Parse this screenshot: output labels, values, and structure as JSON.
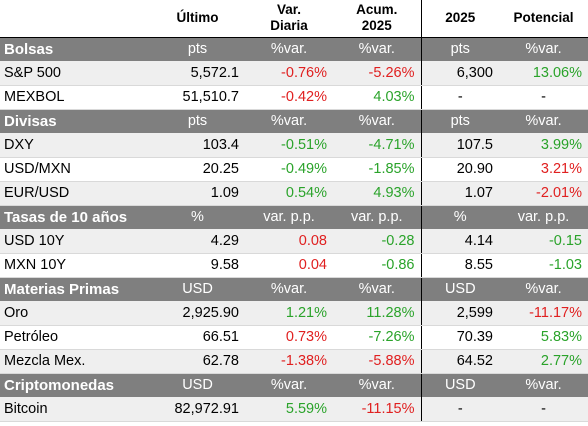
{
  "header": {
    "col_ultimo": "Último",
    "col_var_diaria": "Var.\nDiaria",
    "col_acum": "Acum.\n2025",
    "col_2025": "2025",
    "col_potencial": "Potencial"
  },
  "sections": [
    {
      "title": "Bolsas",
      "units": [
        "pts",
        "%var.",
        "%var.",
        "pts",
        "%var."
      ],
      "rows": [
        {
          "name": "S&P 500",
          "ultimo": "5,572.1",
          "diaria": "-0.76%",
          "acum": "-5.26%",
          "target": "6,300",
          "potencial": "13.06%",
          "colors": [
            "neg",
            "neg",
            "pos"
          ]
        },
        {
          "name": "MEXBOL",
          "ultimo": "51,510.7",
          "diaria": "-0.42%",
          "acum": "4.03%",
          "target": "-",
          "potencial": "-",
          "colors": [
            "neg",
            "pos",
            "neu"
          ]
        }
      ]
    },
    {
      "title": "Divisas",
      "units": [
        "pts",
        "%var.",
        "%var.",
        "pts",
        "%var."
      ],
      "rows": [
        {
          "name": "DXY",
          "ultimo": "103.4",
          "diaria": "-0.51%",
          "acum": "-4.71%",
          "target": "107.5",
          "potencial": "3.99%",
          "colors": [
            "pos",
            "pos",
            "pos"
          ]
        },
        {
          "name": "USD/MXN",
          "ultimo": "20.25",
          "diaria": "-0.49%",
          "acum": "-1.85%",
          "target": "20.90",
          "potencial": "3.21%",
          "colors": [
            "pos",
            "pos",
            "neg"
          ]
        },
        {
          "name": "EUR/USD",
          "ultimo": "1.09",
          "diaria": "0.54%",
          "acum": "4.93%",
          "target": "1.07",
          "potencial": "-2.01%",
          "colors": [
            "pos",
            "pos",
            "neg"
          ]
        }
      ]
    },
    {
      "title": "Tasas de 10 años",
      "units": [
        "%",
        "var. p.p.",
        "var. p.p.",
        "%",
        "var. p.p."
      ],
      "rows": [
        {
          "name": "USD 10Y",
          "ultimo": "4.29",
          "diaria": "0.08",
          "acum": "-0.28",
          "target": "4.14",
          "potencial": "-0.15",
          "colors": [
            "neg",
            "pos",
            "pos"
          ]
        },
        {
          "name": "MXN 10Y",
          "ultimo": "9.58",
          "diaria": "0.04",
          "acum": "-0.86",
          "target": "8.55",
          "potencial": "-1.03",
          "colors": [
            "neg",
            "pos",
            "pos"
          ]
        }
      ]
    },
    {
      "title": "Materias Primas",
      "units": [
        "USD",
        "%var.",
        "%var.",
        "USD",
        "%var."
      ],
      "rows": [
        {
          "name": "Oro",
          "ultimo": "2,925.90",
          "diaria": "1.21%",
          "acum": "11.28%",
          "target": "2,599",
          "potencial": "-11.17%",
          "colors": [
            "pos",
            "pos",
            "neg"
          ]
        },
        {
          "name": "Petróleo",
          "ultimo": "66.51",
          "diaria": "0.73%",
          "acum": "-7.26%",
          "target": "70.39",
          "potencial": "5.83%",
          "colors": [
            "neg",
            "pos",
            "pos"
          ]
        },
        {
          "name": "Mezcla Mex.",
          "ultimo": "62.78",
          "diaria": "-1.38%",
          "acum": "-5.88%",
          "target": "64.52",
          "potencial": "2.77%",
          "colors": [
            "neg",
            "neg",
            "pos"
          ]
        }
      ]
    },
    {
      "title": "Criptomonedas",
      "units": [
        "USD",
        "%var.",
        "%var.",
        "USD",
        "%var."
      ],
      "rows": [
        {
          "name": "Bitcoin",
          "ultimo": "82,972.91",
          "diaria": "5.59%",
          "acum": "-11.15%",
          "target": "-",
          "potencial": "-",
          "colors": [
            "pos",
            "neg",
            "neu"
          ]
        }
      ]
    }
  ]
}
